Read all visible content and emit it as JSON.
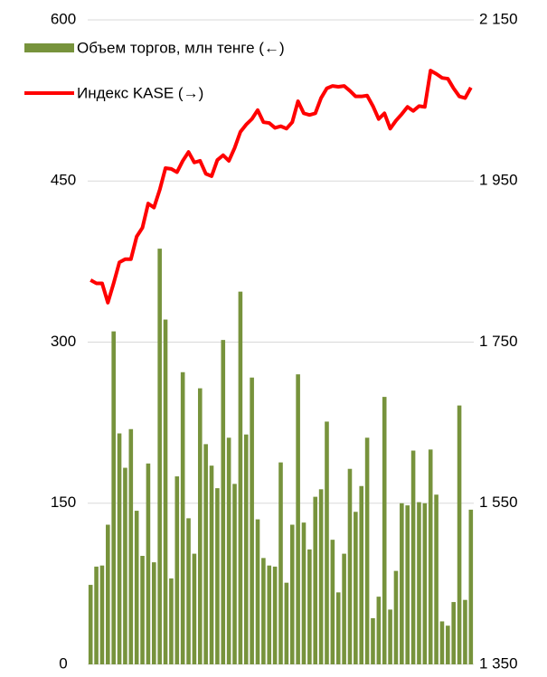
{
  "chart_data": {
    "type": "bar_line",
    "categories": [
      null,
      null,
      null,
      null,
      null,
      null,
      null,
      null,
      null,
      null,
      null,
      null,
      null,
      null,
      null,
      null,
      null,
      null,
      null,
      null,
      null,
      null,
      null,
      null,
      null,
      null,
      null,
      null,
      null,
      null,
      null,
      null,
      null,
      null,
      null,
      null,
      null,
      null,
      null,
      null,
      null,
      null,
      null,
      null,
      null,
      null,
      null,
      null,
      null,
      null,
      null,
      null,
      null,
      null,
      null,
      null,
      null,
      null,
      null,
      null,
      null,
      null,
      null,
      null,
      null,
      null,
      null
    ],
    "series": [
      {
        "name": "Объем торгов, млн тенге (←)",
        "type": "bar",
        "color": "#77933c",
        "values": [
          74,
          91,
          92,
          130,
          310,
          215,
          183,
          219,
          143,
          101,
          187,
          95,
          387,
          321,
          80,
          175,
          272,
          136,
          103,
          257,
          205,
          185,
          164,
          302,
          211,
          168,
          347,
          214,
          267,
          135,
          99,
          92,
          91,
          188,
          76,
          130,
          270,
          132,
          107,
          156,
          163,
          226,
          116,
          67,
          103,
          182,
          142,
          166,
          211,
          43,
          63,
          249,
          51,
          87,
          150,
          148,
          199,
          151,
          150,
          200,
          158,
          40,
          36,
          58,
          241,
          60,
          144
        ]
      },
      {
        "name": "Индекс KASE (→)",
        "type": "line",
        "axis": "y2",
        "color": "#ff0000",
        "values": [
          1827,
          1823,
          1823,
          1799,
          1823,
          1849,
          1853,
          1853,
          1881,
          1892,
          1922,
          1917,
          1939,
          1966,
          1965,
          1961,
          1975,
          1986,
          1973,
          1975,
          1959,
          1956,
          1976,
          1982,
          1975,
          1991,
          2011,
          2020,
          2027,
          2038,
          2023,
          2022,
          2016,
          2018,
          2015,
          2023,
          2049,
          2034,
          2032,
          2034,
          2053,
          2065,
          2068,
          2067,
          2068,
          2062,
          2055,
          2055,
          2056,
          2043,
          2027,
          2034,
          2015,
          2025,
          2033,
          2042,
          2037,
          2043,
          2042,
          2087,
          2083,
          2078,
          2077,
          2065,
          2055,
          2053,
          2066
        ]
      }
    ],
    "ylim": [
      0,
      600
    ],
    "yticks": [
      0,
      150,
      300,
      450,
      600
    ],
    "y2lim": [
      1350,
      2150
    ],
    "y2ticks": [
      {
        "value": 1350,
        "label": "1 350"
      },
      {
        "value": 1550,
        "label": "1 550"
      },
      {
        "value": 1750,
        "label": "1 750"
      },
      {
        "value": 1950,
        "label": "1 950"
      },
      {
        "value": 2150,
        "label": "2 150"
      }
    ],
    "grid": true,
    "legend": "top-left"
  }
}
